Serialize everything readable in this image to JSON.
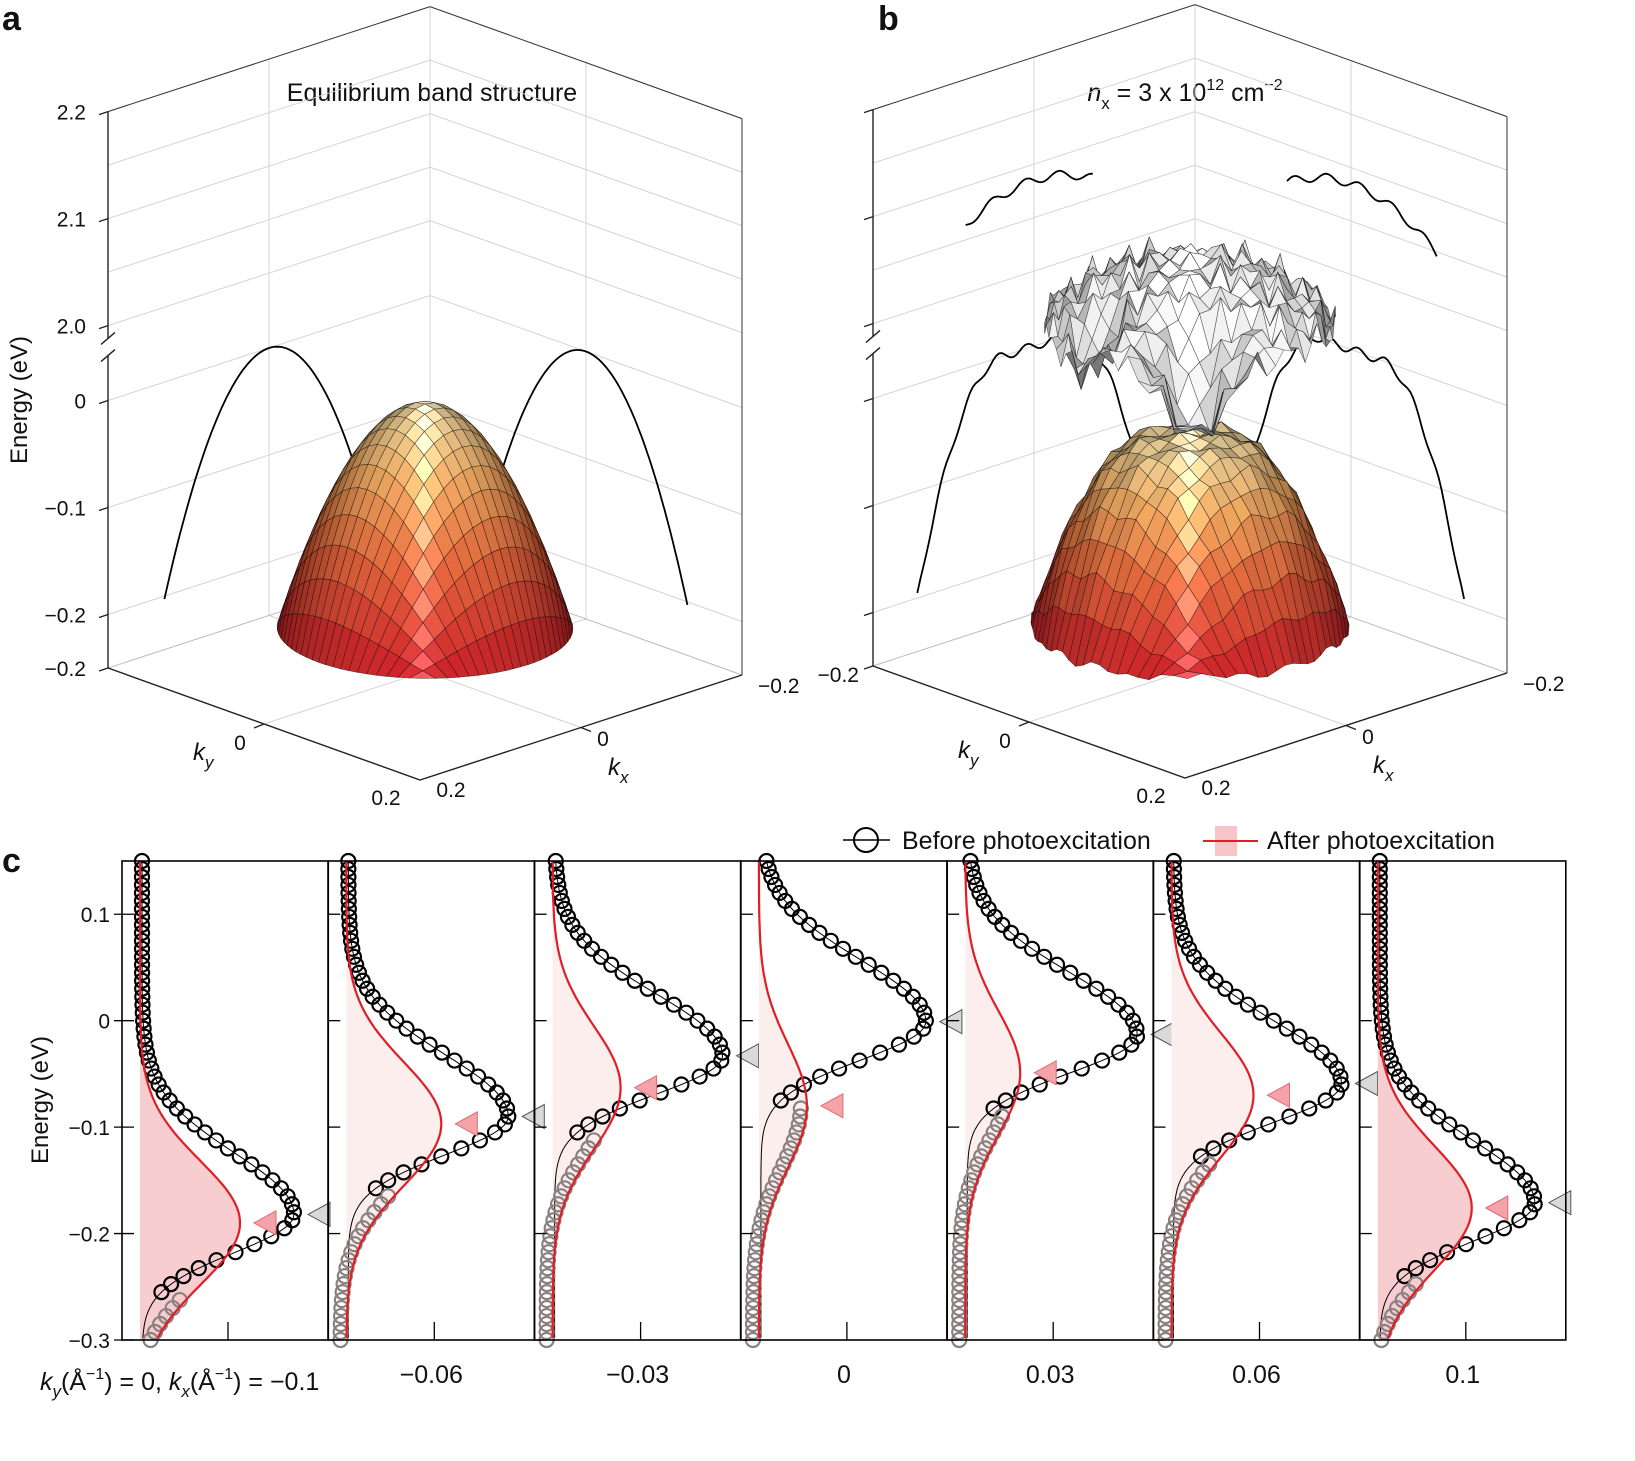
{
  "panel_labels": {
    "a": "a",
    "b": "b",
    "c": "c"
  },
  "colors": {
    "before_markers": "#000000",
    "before_markers_faded": "#8a8080",
    "after_line": "#e01e25",
    "after_fill": "#f7cdd0",
    "after_fill_light": "#fdeeee",
    "surface_low": "#b9192a",
    "surface_high": "#e0c890",
    "upper_surface": "#e6e6e6",
    "peak_marker_before": "#d9d9d9",
    "peak_marker_after": "#f4a3a8"
  },
  "chart_data": [
    {
      "panel": "a",
      "type": "surface",
      "title": "Equilibrium band structure",
      "zlabel": "Energy (eV)",
      "z_ticks": [
        "2.2",
        "2.1",
        "2.0",
        "0",
        "−0.1",
        "−0.2",
        "−0.2"
      ],
      "z_tick_values": [
        2.2,
        2.1,
        2.0,
        0,
        -0.1,
        -0.2,
        -0.25
      ],
      "zlim": [
        -0.25,
        2.2
      ],
      "axis_break": [
        0.035,
        2.0
      ],
      "x_axis": {
        "label": "k",
        "label_sub": "x",
        "ticks": [
          "0.2",
          "0",
          "−0.2"
        ],
        "range": [
          -0.2,
          0.2
        ]
      },
      "y_axis": {
        "label": "k",
        "label_sub": "y",
        "ticks": [
          "0",
          "0.2"
        ],
        "range": [
          -0.2,
          0.2
        ]
      },
      "valence_band_max_eV": 0,
      "grid": true
    },
    {
      "panel": "b",
      "type": "surface",
      "title": {
        "n": "n",
        "n_sub": "x",
        "eq": " = 3 x 10",
        "exp": "12",
        "unit": " cm",
        "unit_exp": "−2"
      },
      "z_ticks": [
        "−0.2"
      ],
      "zlim": [
        -0.25,
        2.2
      ],
      "axis_break": [
        0.035,
        2.0
      ],
      "x_axis": {
        "label": "k",
        "label_sub": "x",
        "ticks": [
          "0.2",
          "0",
          "−0.2"
        ],
        "range": [
          -0.2,
          0.2
        ]
      },
      "y_axis": {
        "label": "k",
        "label_sub": "y",
        "ticks": [
          "0",
          "0.2"
        ],
        "range": [
          -0.2,
          0.2
        ]
      },
      "grid": true
    },
    {
      "panel": "c",
      "type": "line",
      "ylabel": "Energy (eV)",
      "ylim": [
        -0.3,
        0.15
      ],
      "yticks": [
        "0.1",
        "0",
        "−0.1",
        "−0.2",
        "−0.3"
      ],
      "ytick_values": [
        0.1,
        0,
        -0.1,
        -0.2,
        -0.3
      ],
      "legend": {
        "position": "top-right",
        "before": "Before photoexcitation",
        "after": "After photoexcitation"
      },
      "first_label": {
        "ky": "k",
        "ky_sub": "y",
        "unit1": "(Å",
        "unit1_sup": "−1",
        "ky_val": ") = 0, ",
        "kx": "k",
        "kx_sub": "x",
        "unit2": "(Å",
        "unit2_sup": "−1",
        "kx_val": ") = −0.1"
      },
      "kx_labels": [
        "−0.06",
        "−0.03",
        "0",
        "0.03",
        "0.06",
        "0.1"
      ],
      "kx": [
        -0.1,
        -0.06,
        -0.03,
        0,
        0.03,
        0.06,
        0.1
      ],
      "ky": 0,
      "series": [
        {
          "name": "Before photoexcitation",
          "peak_energy": [
            -0.182,
            -0.09,
            -0.033,
            -0.001,
            -0.013,
            -0.059,
            -0.171
          ]
        },
        {
          "name": "After photoexcitation",
          "peak_energy": [
            -0.19,
            -0.097,
            -0.063,
            -0.08,
            -0.049,
            -0.07,
            -0.176
          ]
        }
      ]
    }
  ]
}
